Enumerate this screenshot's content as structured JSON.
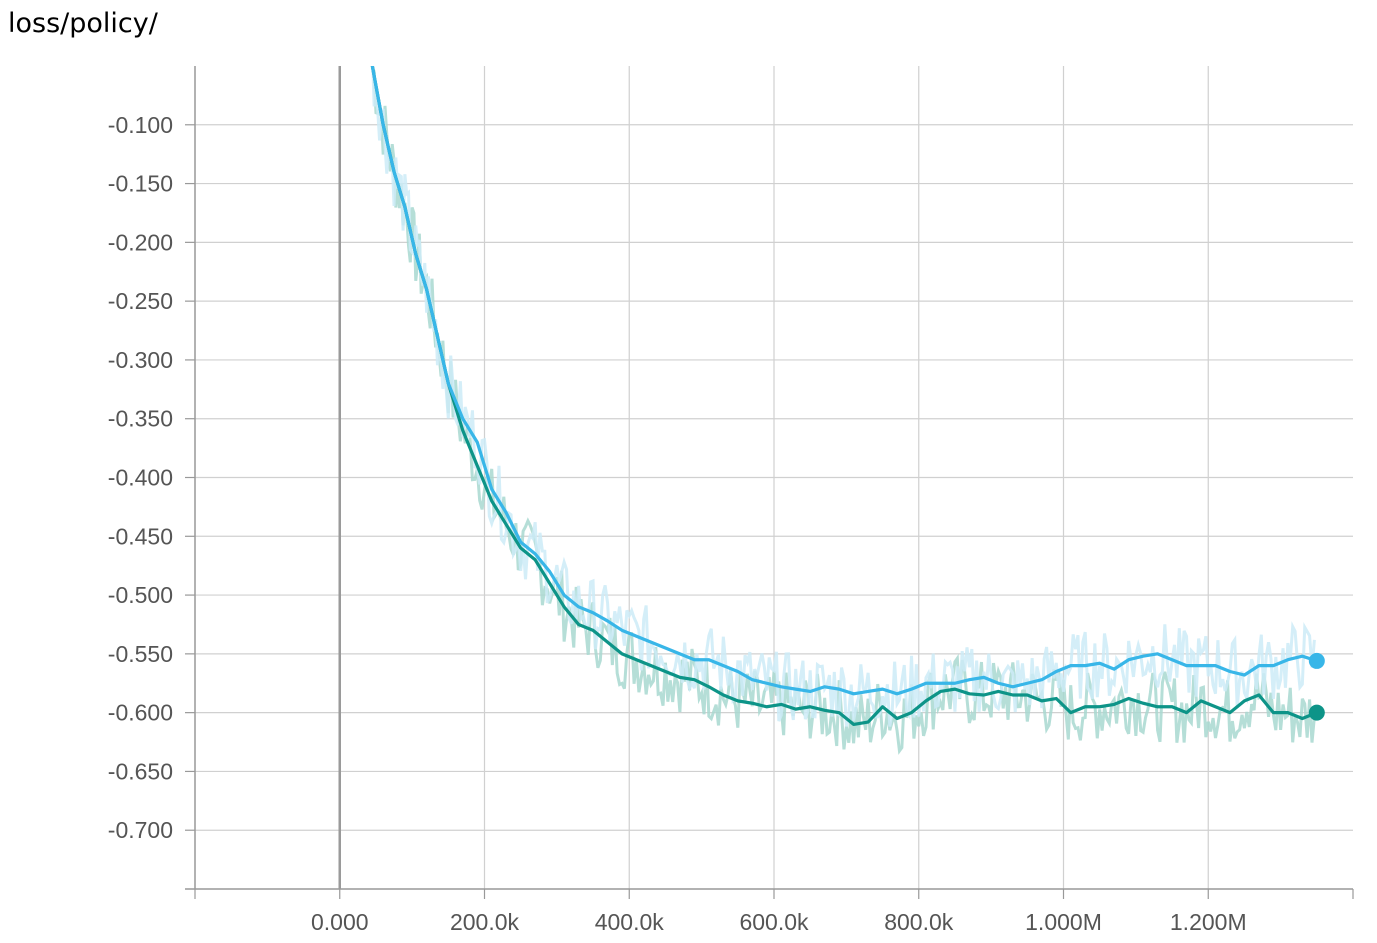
{
  "chart_data": {
    "type": "line",
    "title": "loss/policy/",
    "xlim": [
      -200000,
      1400000
    ],
    "ylim": [
      -0.75,
      -0.05
    ],
    "x_ticks": [
      {
        "value": 0,
        "label": "0.000"
      },
      {
        "value": 200000,
        "label": "200.0k"
      },
      {
        "value": 400000,
        "label": "400.0k"
      },
      {
        "value": 600000,
        "label": "600.0k"
      },
      {
        "value": 800000,
        "label": "800.0k"
      },
      {
        "value": 1000000,
        "label": "1.000M"
      },
      {
        "value": 1200000,
        "label": "1.200M"
      }
    ],
    "y_ticks": [
      {
        "value": -0.1,
        "label": "-0.100"
      },
      {
        "value": -0.15,
        "label": "-0.150"
      },
      {
        "value": -0.2,
        "label": "-0.200"
      },
      {
        "value": -0.25,
        "label": "-0.250"
      },
      {
        "value": -0.3,
        "label": "-0.300"
      },
      {
        "value": -0.35,
        "label": "-0.350"
      },
      {
        "value": -0.4,
        "label": "-0.400"
      },
      {
        "value": -0.45,
        "label": "-0.450"
      },
      {
        "value": -0.5,
        "label": "-0.500"
      },
      {
        "value": -0.55,
        "label": "-0.550"
      },
      {
        "value": -0.6,
        "label": "-0.600"
      },
      {
        "value": -0.65,
        "label": "-0.650"
      },
      {
        "value": -0.7,
        "label": "-0.700"
      }
    ],
    "grid": true,
    "series": [
      {
        "color": "#0d9488",
        "raw_color": "#a8d8d0",
        "x": [
          45000,
          60000,
          75000,
          90000,
          105000,
          120000,
          135000,
          150000,
          170000,
          190000,
          210000,
          230000,
          250000,
          270000,
          290000,
          310000,
          330000,
          350000,
          370000,
          390000,
          410000,
          430000,
          450000,
          470000,
          490000,
          510000,
          530000,
          550000,
          570000,
          590000,
          610000,
          630000,
          650000,
          670000,
          690000,
          710000,
          730000,
          750000,
          770000,
          790000,
          810000,
          830000,
          850000,
          870000,
          890000,
          910000,
          930000,
          950000,
          970000,
          990000,
          1010000,
          1030000,
          1050000,
          1070000,
          1090000,
          1110000,
          1130000,
          1150000,
          1170000,
          1190000,
          1210000,
          1230000,
          1250000,
          1270000,
          1290000,
          1310000,
          1330000,
          1350000
        ],
        "y": [
          -0.05,
          -0.1,
          -0.14,
          -0.17,
          -0.21,
          -0.24,
          -0.28,
          -0.32,
          -0.36,
          -0.39,
          -0.42,
          -0.44,
          -0.46,
          -0.47,
          -0.49,
          -0.51,
          -0.525,
          -0.53,
          -0.54,
          -0.55,
          -0.555,
          -0.56,
          -0.565,
          -0.57,
          -0.572,
          -0.578,
          -0.585,
          -0.59,
          -0.592,
          -0.595,
          -0.593,
          -0.597,
          -0.595,
          -0.598,
          -0.6,
          -0.61,
          -0.608,
          -0.595,
          -0.605,
          -0.6,
          -0.59,
          -0.582,
          -0.58,
          -0.584,
          -0.585,
          -0.582,
          -0.585,
          -0.585,
          -0.59,
          -0.588,
          -0.6,
          -0.595,
          -0.595,
          -0.593,
          -0.588,
          -0.592,
          -0.595,
          -0.595,
          -0.6,
          -0.59,
          -0.595,
          -0.6,
          -0.59,
          -0.585,
          -0.6,
          -0.6,
          -0.605,
          -0.6
        ]
      },
      {
        "color": "#38b6e8",
        "raw_color": "#cdebf7",
        "x": [
          45000,
          60000,
          75000,
          90000,
          105000,
          120000,
          135000,
          150000,
          170000,
          190000,
          210000,
          230000,
          250000,
          270000,
          290000,
          310000,
          330000,
          350000,
          370000,
          390000,
          410000,
          430000,
          450000,
          470000,
          490000,
          510000,
          530000,
          550000,
          570000,
          590000,
          610000,
          630000,
          650000,
          670000,
          690000,
          710000,
          730000,
          750000,
          770000,
          790000,
          810000,
          830000,
          850000,
          870000,
          890000,
          910000,
          930000,
          950000,
          970000,
          990000,
          1010000,
          1030000,
          1050000,
          1070000,
          1090000,
          1110000,
          1130000,
          1150000,
          1170000,
          1190000,
          1210000,
          1230000,
          1250000,
          1270000,
          1290000,
          1310000,
          1330000,
          1350000
        ],
        "y": [
          -0.05,
          -0.1,
          -0.14,
          -0.17,
          -0.21,
          -0.24,
          -0.28,
          -0.32,
          -0.35,
          -0.37,
          -0.41,
          -0.43,
          -0.455,
          -0.465,
          -0.48,
          -0.5,
          -0.51,
          -0.515,
          -0.522,
          -0.53,
          -0.535,
          -0.54,
          -0.545,
          -0.55,
          -0.555,
          -0.555,
          -0.56,
          -0.565,
          -0.572,
          -0.575,
          -0.578,
          -0.58,
          -0.582,
          -0.578,
          -0.58,
          -0.584,
          -0.582,
          -0.58,
          -0.584,
          -0.58,
          -0.575,
          -0.575,
          -0.575,
          -0.572,
          -0.57,
          -0.575,
          -0.578,
          -0.575,
          -0.572,
          -0.565,
          -0.56,
          -0.56,
          -0.558,
          -0.563,
          -0.555,
          -0.552,
          -0.55,
          -0.555,
          -0.56,
          -0.56,
          -0.56,
          -0.565,
          -0.568,
          -0.56,
          -0.56,
          -0.555,
          -0.552,
          -0.556
        ]
      }
    ]
  }
}
